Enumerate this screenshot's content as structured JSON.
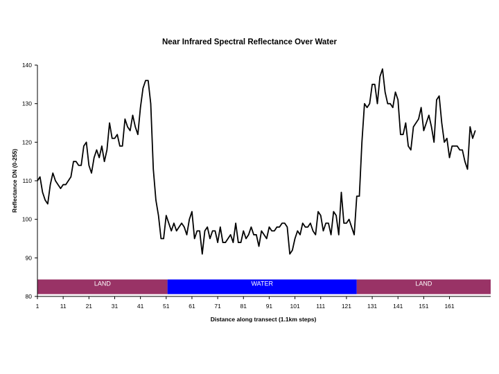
{
  "chart_data": {
    "type": "line",
    "title": "Near Infrared Spectral Reflectance Over Water",
    "xlabel": "Distance along transect (1.1km steps)",
    "ylabel": "Reflectance DN (0-255)",
    "xlim": [
      1,
      177
    ],
    "ylim": [
      80,
      140
    ],
    "ytick_labels": [
      "80",
      "90",
      "100",
      "110",
      "120",
      "130",
      "140"
    ],
    "ytick_values": [
      80,
      90,
      100,
      110,
      120,
      130,
      140
    ],
    "xtick_labels": [
      "1",
      "11",
      "21",
      "31",
      "41",
      "51",
      "61",
      "71",
      "81",
      "91",
      "101",
      "111",
      "121",
      "131",
      "141",
      "151",
      "161"
    ],
    "xtick_values": [
      1,
      11,
      21,
      31,
      41,
      51,
      61,
      71,
      81,
      91,
      101,
      111,
      121,
      131,
      141,
      151,
      161
    ],
    "grid": false,
    "legend": "none",
    "series": [
      {
        "name": "Reflectance DN",
        "color": "#000000",
        "values": [
          110,
          111,
          107,
          105,
          104,
          109,
          112,
          110,
          109,
          108,
          109,
          109,
          110,
          111,
          115,
          115,
          114,
          114,
          119,
          120,
          114,
          112,
          116,
          118,
          116,
          119,
          115,
          118,
          125,
          121,
          121,
          122,
          119,
          119,
          126,
          124,
          123,
          127,
          124,
          122,
          129,
          134,
          136,
          136,
          130,
          113,
          105,
          101,
          95,
          95,
          101,
          99,
          97,
          99,
          97,
          98,
          99,
          98,
          96,
          100,
          102,
          95,
          97,
          97,
          91,
          97,
          98,
          95,
          97,
          97,
          94,
          98,
          94,
          94,
          95,
          96,
          94,
          99,
          94,
          94,
          97,
          95,
          96,
          98,
          96,
          96,
          93,
          97,
          96,
          95,
          98,
          97,
          97,
          98,
          98,
          99,
          99,
          98,
          91,
          92,
          95,
          97,
          96,
          99,
          98,
          98,
          99,
          97,
          96,
          102,
          101,
          97,
          99,
          99,
          96,
          102,
          101,
          96,
          107,
          99,
          99,
          100,
          98,
          96,
          106,
          106,
          120,
          130,
          129,
          130,
          135,
          135,
          130,
          137,
          139,
          133,
          130,
          130,
          129,
          133,
          131,
          122,
          122,
          125,
          119,
          118,
          124,
          125,
          126,
          129,
          123,
          125,
          127,
          124,
          120,
          131,
          132,
          125,
          120,
          121,
          116,
          119,
          119,
          119,
          118,
          118,
          115,
          113,
          124,
          121,
          123
        ]
      }
    ],
    "bands": [
      {
        "label": "LAND",
        "start": 1,
        "end": 51.5,
        "color": "#993366"
      },
      {
        "label": "WATER",
        "start": 51.5,
        "end": 125,
        "color": "#0000ff"
      },
      {
        "label": "LAND",
        "start": 125,
        "end": 177,
        "color": "#993366"
      }
    ],
    "band_range": [
      80.6,
      84.4
    ]
  }
}
